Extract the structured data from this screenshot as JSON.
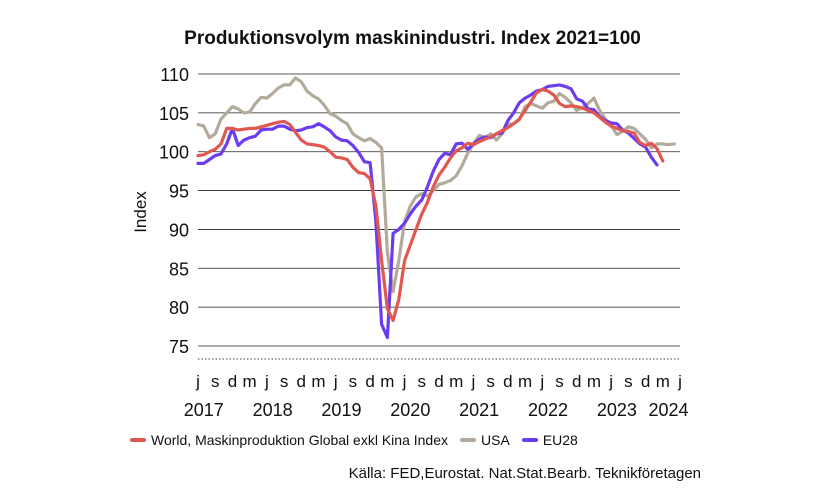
{
  "chart_data": {
    "type": "line",
    "title": "Produktionsvolym maskinindustri. Index 2021=100",
    "ylabel": "Index",
    "ylim": [
      75,
      110
    ],
    "yticks": [
      75,
      80,
      85,
      90,
      95,
      100,
      105,
      110
    ],
    "grid": "horizontal",
    "x_start": "2017-06",
    "x_month_ticks": [
      "j",
      "s",
      "d",
      "m",
      "j",
      "s",
      "d",
      "m",
      "j",
      "s",
      "d",
      "m",
      "j",
      "s",
      "d",
      "m",
      "j",
      "s",
      "d",
      "m",
      "j",
      "s",
      "d",
      "m",
      "j",
      "s",
      "d",
      "m",
      "j"
    ],
    "x_month_tick_dates": [
      "2017-06",
      "2017-09",
      "2017-12",
      "2018-03",
      "2018-06",
      "2018-09",
      "2018-12",
      "2019-03",
      "2019-06",
      "2019-09",
      "2019-12",
      "2020-03",
      "2020-06",
      "2020-09",
      "2020-12",
      "2021-03",
      "2021-06",
      "2021-09",
      "2021-12",
      "2022-03",
      "2022-06",
      "2022-09",
      "2022-12",
      "2023-03",
      "2023-06",
      "2023-09",
      "2023-12",
      "2024-03",
      "2024-06"
    ],
    "x_year_labels": [
      {
        "label": "2017",
        "date": "2017-07"
      },
      {
        "label": "2018",
        "date": "2018-07"
      },
      {
        "label": "2019",
        "date": "2019-07"
      },
      {
        "label": "2020",
        "date": "2020-07"
      },
      {
        "label": "2021",
        "date": "2021-07"
      },
      {
        "label": "2022",
        "date": "2022-07"
      },
      {
        "label": "2023",
        "date": "2023-07"
      },
      {
        "label": "2024",
        "date": "2024-04"
      }
    ],
    "series": [
      {
        "name": "World, Maskinproduktion Global exkl Kina Index",
        "color": "#e0584f",
        "values": [
          99.5,
          99.6,
          100.0,
          100.3,
          101.0,
          103.0,
          103.0,
          102.8,
          102.9,
          103.0,
          103.0,
          103.2,
          103.4,
          103.6,
          103.8,
          103.9,
          103.5,
          102.5,
          101.5,
          101.0,
          100.9,
          100.8,
          100.6,
          100.0,
          99.3,
          99.2,
          99.0,
          98.0,
          97.3,
          97.2,
          96.5,
          93.0,
          86.0,
          79.8,
          78.3,
          81.0,
          86.0,
          88.0,
          90.0,
          92.0,
          93.5,
          95.5,
          97.0,
          98.0,
          99.2,
          100.1,
          100.5,
          101.1,
          100.9,
          101.3,
          101.6,
          101.9,
          102.3,
          102.7,
          103.1,
          103.6,
          104.2,
          105.3,
          106.4,
          107.6,
          108.0,
          107.8,
          107.3,
          106.2,
          105.8,
          105.9,
          105.8,
          105.6,
          105.3,
          105.0,
          104.4,
          103.8,
          103.3,
          103.0,
          102.7,
          102.6,
          102.4,
          101.2,
          100.8,
          101.1,
          100.4,
          98.8
        ]
      },
      {
        "name": "USA",
        "color": "#b3aa9c",
        "values": [
          103.5,
          103.3,
          101.8,
          102.3,
          104.2,
          105.0,
          105.8,
          105.5,
          105.0,
          105.1,
          106.2,
          107.0,
          106.9,
          107.5,
          108.2,
          108.6,
          108.6,
          109.5,
          109.0,
          107.8,
          107.2,
          106.8,
          106.0,
          104.9,
          104.6,
          104.0,
          103.6,
          102.3,
          101.8,
          101.4,
          101.7,
          101.2,
          100.5,
          87.0,
          82.0,
          86.0,
          91.0,
          93.0,
          94.2,
          94.6,
          94.3,
          95.0,
          95.8,
          96.0,
          96.3,
          96.9,
          98.2,
          99.8,
          101.0,
          102.1,
          101.8,
          102.3,
          101.5,
          102.3,
          103.5,
          103.6,
          104.1,
          105.8,
          106.2,
          105.9,
          105.6,
          106.3,
          106.5,
          107.5,
          107.0,
          106.3,
          105.3,
          105.7,
          106.2,
          106.9,
          105.3,
          104.2,
          103.4,
          102.2,
          102.6,
          103.2,
          103.0,
          102.3,
          101.6,
          100.5,
          101.0,
          101.0,
          100.9,
          101.0
        ]
      },
      {
        "name": "EU28",
        "color": "#6c3cf0",
        "values": [
          98.5,
          98.5,
          99.0,
          99.5,
          99.7,
          101.0,
          103.0,
          100.8,
          101.5,
          101.8,
          102.0,
          102.8,
          102.9,
          102.9,
          103.3,
          103.3,
          102.9,
          102.7,
          102.8,
          103.1,
          103.2,
          103.6,
          103.2,
          102.7,
          101.9,
          101.5,
          101.4,
          100.8,
          99.9,
          98.7,
          98.6,
          91.0,
          77.8,
          76.1,
          89.5,
          90.0,
          90.8,
          92.0,
          93.0,
          93.8,
          95.5,
          97.5,
          99.0,
          99.8,
          99.6,
          101.0,
          101.1,
          100.3,
          101.0,
          101.6,
          101.9,
          101.8,
          102.3,
          102.4,
          104.0,
          105.0,
          106.3,
          106.9,
          107.3,
          107.8,
          108.0,
          108.4,
          108.5,
          108.6,
          108.4,
          108.1,
          106.8,
          106.5,
          105.5,
          105.4,
          104.5,
          104.0,
          103.7,
          103.6,
          102.8,
          102.4,
          101.7,
          101.0,
          100.6,
          99.3,
          98.3
        ]
      }
    ],
    "source": "Källa: FED,Eurostat. Nat.Stat.Bearb. Teknikföretagen"
  }
}
